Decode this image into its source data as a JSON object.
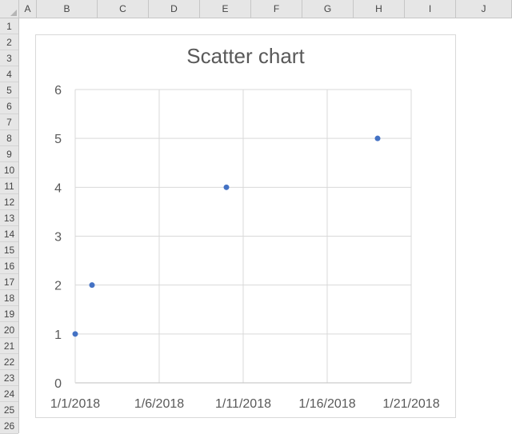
{
  "sheet": {
    "columns": [
      "A",
      "B",
      "C",
      "D",
      "E",
      "F",
      "G",
      "H",
      "I",
      "J"
    ],
    "rows": [
      "1",
      "2",
      "3",
      "4",
      "5",
      "6",
      "7",
      "8",
      "9",
      "10",
      "11",
      "12",
      "13",
      "14",
      "15",
      "16",
      "17",
      "18",
      "19",
      "20",
      "21",
      "22",
      "23",
      "24",
      "25",
      "26"
    ]
  },
  "chart_data": {
    "type": "scatter",
    "title": "Scatter chart",
    "x": [
      "1/1/2018",
      "1/2/2018",
      "1/10/2018",
      "1/19/2018"
    ],
    "y": [
      1,
      2,
      4,
      5
    ],
    "xlim": [
      "1/1/2018",
      "1/21/2018"
    ],
    "ylim": [
      0,
      6
    ],
    "x_ticks": [
      "1/1/2018",
      "1/6/2018",
      "1/11/2018",
      "1/16/2018",
      "1/21/2018"
    ],
    "y_ticks": [
      0,
      1,
      2,
      3,
      4,
      5,
      6
    ],
    "grid": true,
    "marker_color": "#4472c4",
    "gridline_color": "#d9d9d9"
  }
}
